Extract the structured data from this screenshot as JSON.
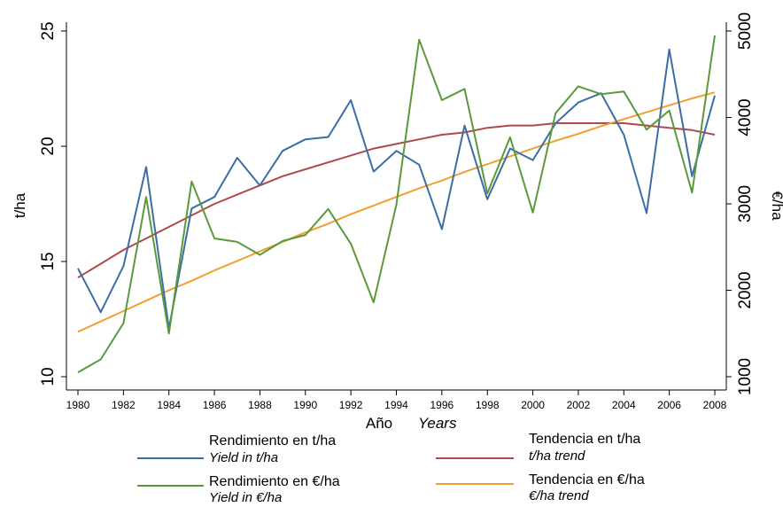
{
  "chart_data": {
    "type": "line",
    "xlabel": "Año",
    "xlabel_en": "Years",
    "ylabel_left": "t/ha",
    "ylabel_right": "€/ha",
    "x_ticks": [
      "1980",
      "1982",
      "1984",
      "1986",
      "1988",
      "1990",
      "1992",
      "1994",
      "1996",
      "1998",
      "2000",
      "2002",
      "2004",
      "2006",
      "2008"
    ],
    "y_left_ticks": [
      "10",
      "15",
      "20",
      "25"
    ],
    "y_right_ticks": [
      "1000",
      "2000",
      "3000",
      "4000",
      "5000"
    ],
    "ylim_left": [
      10,
      25
    ],
    "ylim_right": [
      1000,
      5000
    ],
    "x": [
      1980,
      1981,
      1982,
      1983,
      1984,
      1985,
      1986,
      1987,
      1988,
      1989,
      1990,
      1991,
      1992,
      1993,
      1994,
      1995,
      1996,
      1997,
      1998,
      1999,
      2000,
      2001,
      2002,
      2003,
      2004,
      2005,
      2006,
      2007,
      2008
    ],
    "series": [
      {
        "name": "Rendimiento en t/ha",
        "name_en": "Yield in t/ha",
        "axis": "left",
        "color": "#3a6ea5",
        "values": [
          14.7,
          12.8,
          14.8,
          19.1,
          12.1,
          17.3,
          17.8,
          19.5,
          18.3,
          19.8,
          20.3,
          20.4,
          22.0,
          18.9,
          19.8,
          19.2,
          16.4,
          20.9,
          17.7,
          19.9,
          19.4,
          21.0,
          21.9,
          22.3,
          20.5,
          17.1,
          24.2,
          18.7,
          22.2
        ]
      },
      {
        "name": "Rendimiento en €/ha",
        "name_en": "Yield in €/ha",
        "axis": "right",
        "color": "#5a9a3a",
        "values": [
          1050,
          1200,
          1620,
          3080,
          1500,
          3260,
          2600,
          2560,
          2410,
          2570,
          2640,
          2940,
          2540,
          1860,
          2990,
          4900,
          4200,
          4330,
          3120,
          3770,
          2900,
          4050,
          4360,
          4270,
          4300,
          3860,
          4080,
          3130,
          4950
        ]
      },
      {
        "name": "Tendencia en t/ha",
        "name_en": "t/ha trend",
        "axis": "left",
        "color": "#b04a4a",
        "values": [
          14.3,
          14.9,
          15.5,
          16.0,
          16.5,
          17.0,
          17.5,
          17.9,
          18.3,
          18.7,
          19.0,
          19.3,
          19.6,
          19.9,
          20.1,
          20.3,
          20.5,
          20.6,
          20.8,
          20.9,
          20.9,
          21.0,
          21.0,
          21.0,
          21.0,
          20.9,
          20.8,
          20.7,
          20.5
        ]
      },
      {
        "name": "Tendencia en €/ha",
        "name_en": "€/ha trend",
        "axis": "right",
        "color": "#f0a030",
        "values": [
          1520,
          1640,
          1760,
          1880,
          2000,
          2110,
          2230,
          2340,
          2450,
          2560,
          2670,
          2770,
          2880,
          2980,
          3080,
          3180,
          3270,
          3370,
          3460,
          3550,
          3640,
          3730,
          3810,
          3900,
          3980,
          4060,
          4140,
          4220,
          4290
        ]
      }
    ],
    "legend": {
      "placement": "bottom",
      "order": [
        0,
        2,
        1,
        3
      ]
    },
    "grid": false
  }
}
